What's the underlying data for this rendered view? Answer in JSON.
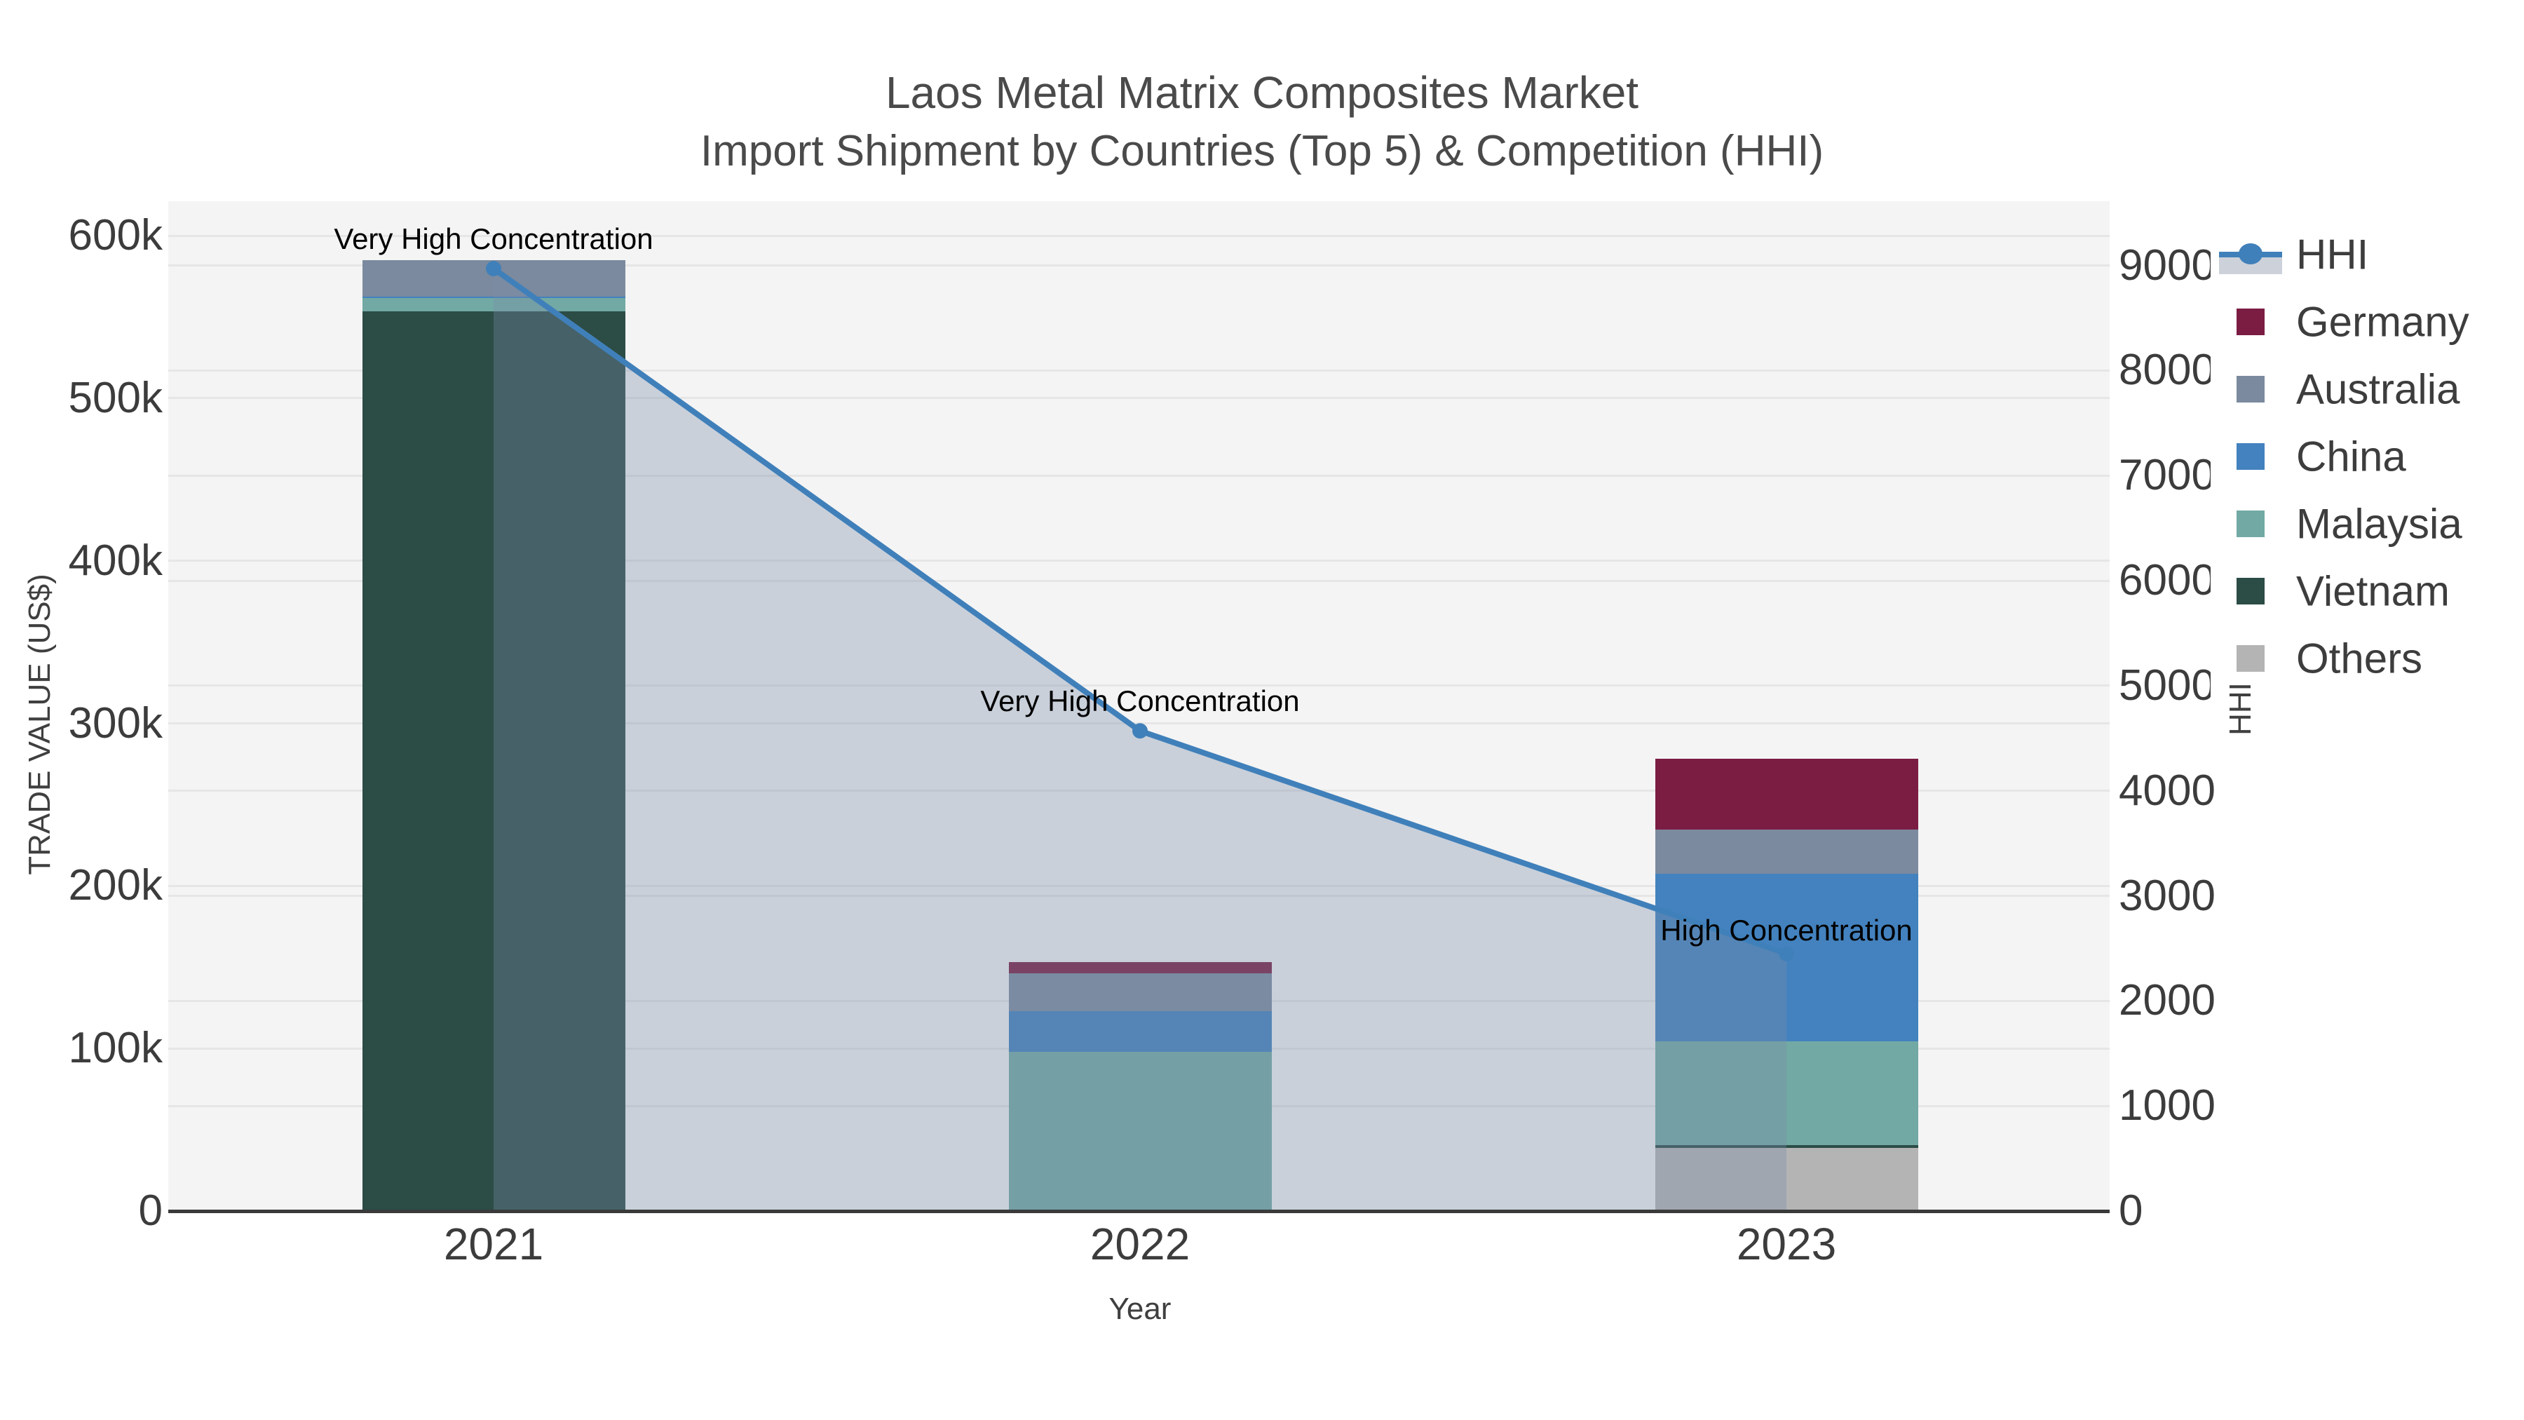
{
  "title": {
    "line1": "Laos Metal Matrix Composites Market",
    "line2": "Import Shipment by Countries (Top 5) & Competition (HHI)"
  },
  "axes": {
    "left": {
      "title": "TRADE VALUE (US$)",
      "tick_labels": [
        "0",
        "100k",
        "200k",
        "300k",
        "400k",
        "500k",
        "600k"
      ]
    },
    "right": {
      "title": "HHI",
      "tick_labels": [
        "0",
        "1000",
        "2000",
        "3000",
        "4000",
        "5000",
        "6000",
        "7000",
        "8000",
        "9000"
      ]
    },
    "x": {
      "title": "Year",
      "tick_labels": [
        "2021",
        "2022",
        "2023"
      ]
    }
  },
  "legend": {
    "items": [
      {
        "label": "HHI",
        "type": "line"
      },
      {
        "label": "Germany",
        "type": "box"
      },
      {
        "label": "Australia",
        "type": "box"
      },
      {
        "label": "China",
        "type": "box"
      },
      {
        "label": "Malaysia",
        "type": "box"
      },
      {
        "label": "Vietnam",
        "type": "box"
      },
      {
        "label": "Others",
        "type": "box"
      }
    ]
  },
  "colors": {
    "Germany": "#7b1c43",
    "Australia": "#7b8a9e",
    "China": "#4382be",
    "Malaysia": "#72a9a4",
    "Vietnam": "#2c4c46",
    "Others": "#b4b4b4",
    "hhi_line": "#4080ba",
    "hhi_fill": "rgba(120,140,170,0.35)",
    "hhi_band": "#ccd1da",
    "plot_bg": "#f4f4f4",
    "grid": "#e6e6e6",
    "axis_line": "#3a3a3a",
    "text": "#3c3c3c"
  },
  "chart_data": {
    "type": "bar",
    "subtype": "stacked bars (left axis, trade value US$) + line (right axis, HHI)",
    "title": "Laos Metal Matrix Composites Market — Import Shipment by Countries (Top 5) & Competition (HHI)",
    "xlabel": "Year",
    "ylabel_left": "TRADE VALUE (US$)",
    "ylabel_right": "HHI",
    "categories": [
      "2021",
      "2022",
      "2023"
    ],
    "stack_order_bottom_to_top": [
      "Others",
      "Vietnam",
      "Malaysia",
      "China",
      "Australia",
      "Germany"
    ],
    "series": [
      {
        "name": "Germany",
        "values": [
          0,
          6900,
          43400
        ]
      },
      {
        "name": "Australia",
        "values": [
          22200,
          23300,
          27300
        ]
      },
      {
        "name": "China",
        "values": [
          1000,
          25000,
          103300
        ]
      },
      {
        "name": "Malaysia",
        "values": [
          8000,
          97900,
          63800
        ]
      },
      {
        "name": "Vietnam",
        "values": [
          553500,
          0,
          1700
        ]
      },
      {
        "name": "Others",
        "values": [
          0,
          0,
          38700
        ]
      }
    ],
    "bar_totals": [
      584700,
      153100,
      278200
    ],
    "line": {
      "name": "HHI",
      "axis": "right",
      "values": [
        8970,
        4570,
        2450
      ],
      "area_fill": true
    },
    "annotations": [
      {
        "x": "2021",
        "text": "Very High Concentration"
      },
      {
        "x": "2022",
        "text": "Very High Concentration"
      },
      {
        "x": "2023",
        "text": "High Concentration"
      }
    ],
    "left_axis": {
      "range": [
        0,
        620000
      ],
      "ticks": [
        0,
        100000,
        200000,
        300000,
        400000,
        500000,
        600000
      ]
    },
    "right_axis": {
      "range": [
        0,
        9700
      ],
      "ticks": [
        0,
        1000,
        2000,
        3000,
        4000,
        5000,
        6000,
        7000,
        8000,
        9000
      ]
    },
    "grid": true,
    "legend_position": "right, overlapping right tick labels"
  }
}
